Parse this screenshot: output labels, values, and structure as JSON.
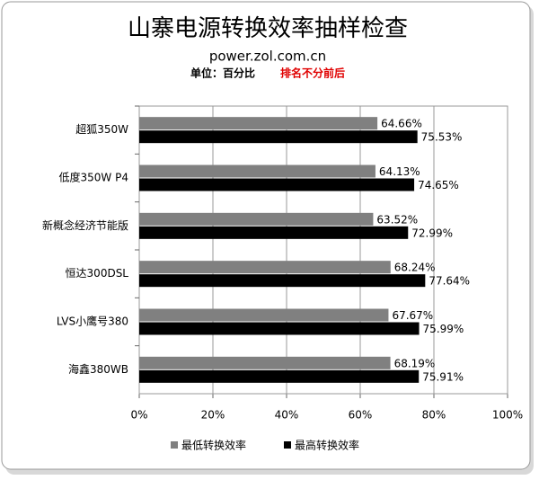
{
  "chart_data": {
    "type": "hbar",
    "title": "山寨电源转换效率抽样检查",
    "subtitle": "power.zol.com.cn",
    "unit_note": "单位：百分比",
    "ranking_note": "排名不分前后",
    "categories": [
      "超狐350W",
      "低度350W P4",
      "新概念经济节能版",
      "恒达300DSL",
      "LVS小鹰号380",
      "海鑫380WB"
    ],
    "series": [
      {
        "name": "最低转换效率",
        "color": "#808080",
        "values": [
          64.66,
          64.13,
          63.52,
          68.24,
          67.67,
          68.19
        ],
        "value_labels": [
          "64.66%",
          "64.13%",
          "63.52%",
          "68.24%",
          "67.67%",
          "68.19%"
        ]
      },
      {
        "name": "最高转换效率",
        "color": "#000000",
        "values": [
          75.53,
          74.65,
          72.99,
          77.64,
          75.99,
          75.91
        ],
        "value_labels": [
          "75.53%",
          "74.65%",
          "72.99%",
          "77.64%",
          "75.99%",
          "75.91%"
        ]
      }
    ],
    "xlim": [
      0,
      100
    ],
    "xticks": [
      {
        "value": 0,
        "label": "0%"
      },
      {
        "value": 20,
        "label": "20%"
      },
      {
        "value": 40,
        "label": "40%"
      },
      {
        "value": 60,
        "label": "60%"
      },
      {
        "value": 80,
        "label": "80%"
      },
      {
        "value": 100,
        "label": "100%"
      }
    ],
    "grid": true,
    "legend": "bottom"
  }
}
